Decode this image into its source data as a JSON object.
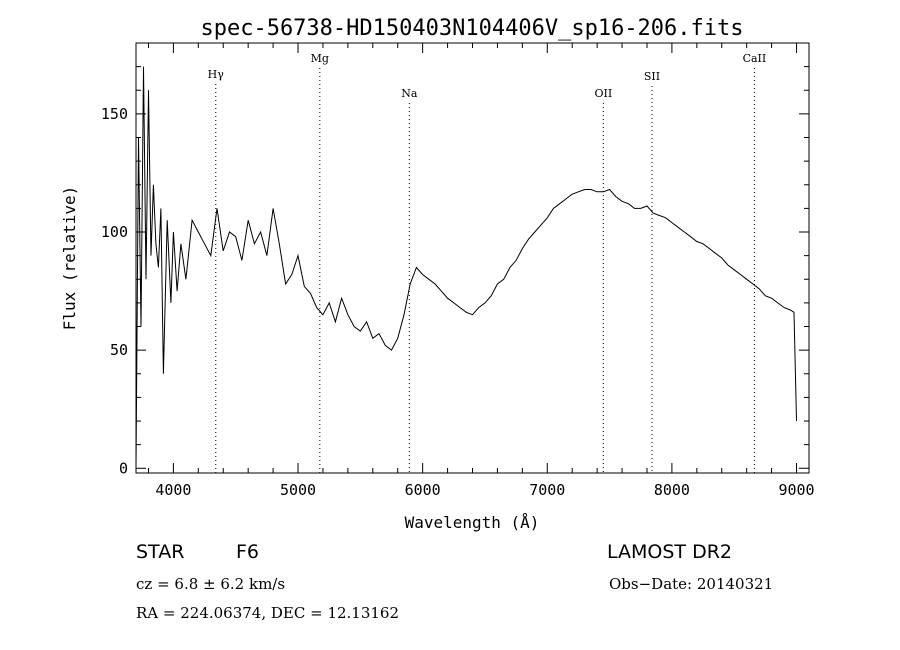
{
  "chart_data": {
    "type": "line",
    "title": "spec-56738-HD150403N104406V_sp16-206.fits",
    "xlabel": "Wavelength (Å)",
    "ylabel": "Flux (relative)",
    "xlim": [
      3700,
      9100
    ],
    "ylim": [
      -2,
      180
    ],
    "x_ticks": [
      4000,
      5000,
      6000,
      7000,
      8000,
      9000
    ],
    "y_ticks": [
      0,
      50,
      100,
      150
    ],
    "grid": false,
    "line_color": "#000000",
    "spectral_lines": [
      {
        "label": "Hγ",
        "wavelength": 4340
      },
      {
        "label": "Mg",
        "wavelength": 5175
      },
      {
        "label": "Na",
        "wavelength": 5893
      },
      {
        "label": "OII",
        "wavelength": 7450
      },
      {
        "label": "SII",
        "wavelength": 7840
      },
      {
        "label": "CaII",
        "wavelength": 8662
      }
    ],
    "series": [
      {
        "x": [
          3700,
          3720,
          3740,
          3760,
          3780,
          3800,
          3820,
          3840,
          3860,
          3880,
          3900,
          3920,
          3950,
          3980,
          4000,
          4030,
          4060,
          4100,
          4150,
          4200,
          4250,
          4300,
          4350,
          4400,
          4450,
          4500,
          4550,
          4600,
          4650,
          4700,
          4750,
          4800,
          4850,
          4900,
          4950,
          5000,
          5050,
          5100,
          5150,
          5200,
          5250,
          5300,
          5350,
          5400,
          5450,
          5500,
          5550,
          5600,
          5650,
          5700,
          5750,
          5800,
          5850,
          5900,
          5950,
          6000,
          6050,
          6100,
          6150,
          6200,
          6250,
          6300,
          6350,
          6400,
          6450,
          6500,
          6550,
          6600,
          6650,
          6700,
          6750,
          6800,
          6850,
          6900,
          6950,
          7000,
          7050,
          7100,
          7150,
          7200,
          7250,
          7300,
          7350,
          7400,
          7450,
          7500,
          7550,
          7600,
          7650,
          7700,
          7750,
          7800,
          7850,
          7900,
          7950,
          8000,
          8050,
          8100,
          8150,
          8200,
          8250,
          8300,
          8350,
          8400,
          8450,
          8500,
          8550,
          8600,
          8650,
          8700,
          8750,
          8800,
          8850,
          8900,
          8950,
          8980,
          9000
        ],
        "y": [
          0,
          140,
          60,
          170,
          80,
          160,
          90,
          120,
          95,
          85,
          110,
          40,
          105,
          70,
          100,
          75,
          95,
          80,
          105,
          100,
          95,
          90,
          110,
          92,
          100,
          98,
          88,
          105,
          95,
          100,
          90,
          110,
          95,
          78,
          82,
          90,
          77,
          74,
          68,
          65,
          70,
          62,
          72,
          65,
          60,
          58,
          62,
          55,
          57,
          52,
          50,
          55,
          65,
          78,
          85,
          82,
          80,
          78,
          75,
          72,
          70,
          68,
          66,
          65,
          68,
          70,
          73,
          78,
          80,
          85,
          88,
          93,
          97,
          100,
          103,
          106,
          110,
          112,
          114,
          116,
          117,
          118,
          118,
          117,
          117,
          118,
          115,
          113,
          112,
          110,
          110,
          111,
          108,
          107,
          106,
          104,
          102,
          100,
          98,
          96,
          95,
          93,
          91,
          89,
          86,
          84,
          82,
          80,
          78,
          76,
          73,
          72,
          70,
          68,
          67,
          66,
          20
        ]
      }
    ]
  },
  "info": {
    "object_class": "STAR",
    "subclass": "F6",
    "survey": "LAMOST DR2",
    "cz": "cz = 6.8 ± 6.2 km/s",
    "obs_date": "Obs−Date: 20140321",
    "coords": "RA = 224.06374, DEC =  12.13162"
  }
}
